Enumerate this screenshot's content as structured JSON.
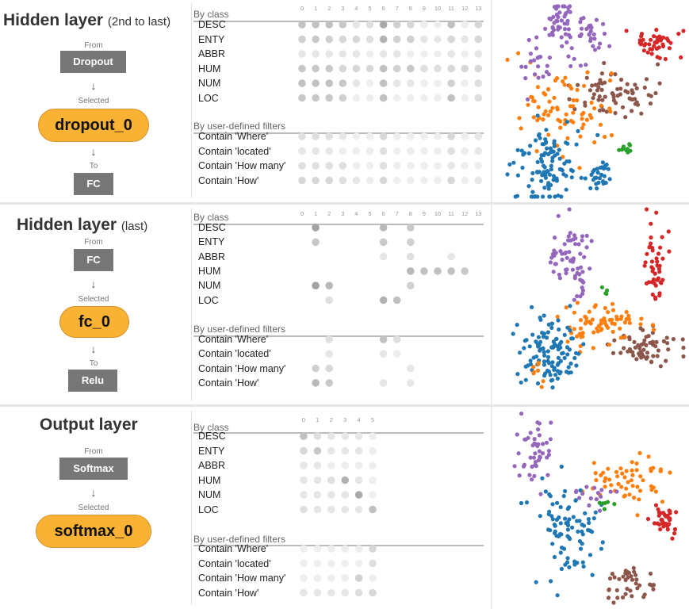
{
  "panels": [
    {
      "title": "Hidden layer",
      "subtitle": "(2nd to last)",
      "from_label": "From",
      "from": "Dropout",
      "selected_label": "Selected",
      "selected": "dropout_0",
      "to_label": "To",
      "to": "FC",
      "columns": [
        "0",
        "1",
        "2",
        "3",
        "4",
        "5",
        "6",
        "7",
        "8",
        "9",
        "10",
        "11",
        "12",
        "13"
      ],
      "class_header": "By class",
      "classes": [
        "DESC",
        "ENTY",
        "ABBR",
        "HUM",
        "NUM",
        "LOC"
      ],
      "filter_header": "By user-defined filters",
      "filters": [
        "Contain 'Where'",
        "Contain 'located'",
        "Contain 'How many'",
        "Contain 'How'"
      ],
      "class_matrix": [
        [
          0.35,
          0.35,
          0.35,
          0.3,
          0.1,
          0.15,
          0.5,
          0.25,
          0.2,
          0.05,
          0.05,
          0.35,
          0.05,
          0.2
        ],
        [
          0.25,
          0.3,
          0.25,
          0.2,
          0.2,
          0.15,
          0.45,
          0.25,
          0.25,
          0.1,
          0.1,
          0.2,
          0.1,
          0.2
        ],
        [
          0.1,
          0.1,
          0.1,
          0.1,
          0.1,
          0.05,
          0.1,
          0.1,
          0.05,
          0.05,
          0.05,
          0.1,
          0.05,
          0.1
        ],
        [
          0.3,
          0.3,
          0.3,
          0.2,
          0.2,
          0.2,
          0.35,
          0.25,
          0.3,
          0.15,
          0.15,
          0.2,
          0.2,
          0.2
        ],
        [
          0.35,
          0.35,
          0.35,
          0.3,
          0.1,
          0.05,
          0.35,
          0.1,
          0.1,
          0.05,
          0.05,
          0.25,
          0.05,
          0.15
        ],
        [
          0.3,
          0.3,
          0.3,
          0.25,
          0.05,
          0.05,
          0.35,
          0.05,
          0.05,
          0.05,
          0.05,
          0.35,
          0.05,
          0.15
        ]
      ],
      "filter_matrix": [
        [
          0.15,
          0.15,
          0.15,
          0.1,
          0.05,
          0.05,
          0.2,
          0.05,
          0.05,
          0.05,
          0.05,
          0.2,
          0.05,
          0.1
        ],
        [
          0.1,
          0.1,
          0.1,
          0.05,
          0.05,
          0.05,
          0.15,
          0.05,
          0.05,
          0.05,
          0.05,
          0.15,
          0.05,
          0.1
        ],
        [
          0.15,
          0.15,
          0.15,
          0.15,
          0.05,
          0.05,
          0.15,
          0.05,
          0.05,
          0.05,
          0.05,
          0.1,
          0.05,
          0.05
        ],
        [
          0.2,
          0.2,
          0.2,
          0.15,
          0.1,
          0.05,
          0.2,
          0.05,
          0.05,
          0.05,
          0.05,
          0.2,
          0.05,
          0.1
        ]
      ]
    },
    {
      "title": "Hidden layer",
      "subtitle": "(last)",
      "from_label": "From",
      "from": "FC",
      "selected_label": "Selected",
      "selected": "fc_0",
      "to_label": "To",
      "to": "Relu",
      "columns": [
        "0",
        "1",
        "2",
        "3",
        "4",
        "5",
        "6",
        "7",
        "8",
        "9",
        "10",
        "11",
        "12",
        "13"
      ],
      "class_header": "By class",
      "classes": [
        "DESC",
        "ENTY",
        "ABBR",
        "HUM",
        "NUM",
        "LOC"
      ],
      "filter_header": "By user-defined filters",
      "filters": [
        "Contain 'Where'",
        "Contain 'located'",
        "Contain 'How many'",
        "Contain 'How'"
      ],
      "class_matrix": [
        [
          0,
          0.55,
          0,
          0,
          0,
          0,
          0.4,
          0,
          0.3,
          0,
          0,
          0,
          0,
          0
        ],
        [
          0,
          0.3,
          0,
          0,
          0,
          0,
          0.3,
          0,
          0.25,
          0,
          0,
          0,
          0,
          0
        ],
        [
          0,
          0,
          0,
          0,
          0,
          0,
          0.1,
          0,
          0.15,
          0,
          0,
          0.1,
          0,
          0
        ],
        [
          0,
          0,
          0,
          0,
          0,
          0,
          0,
          0,
          0.4,
          0.35,
          0.35,
          0.35,
          0.3,
          0
        ],
        [
          0,
          0.55,
          0.4,
          0,
          0,
          0,
          0,
          0,
          0.25,
          0,
          0,
          0,
          0,
          0
        ],
        [
          0,
          0,
          0.15,
          0,
          0,
          0,
          0.45,
          0.35,
          0,
          0,
          0,
          0,
          0,
          0
        ]
      ],
      "filter_matrix": [
        [
          0,
          0,
          0.15,
          0,
          0,
          0,
          0.35,
          0.15,
          0,
          0,
          0,
          0,
          0,
          0
        ],
        [
          0,
          0,
          0.1,
          0,
          0,
          0,
          0.1,
          0.05,
          0,
          0,
          0,
          0,
          0,
          0
        ],
        [
          0,
          0.25,
          0.2,
          0,
          0,
          0,
          0,
          0,
          0.1,
          0,
          0,
          0,
          0,
          0
        ],
        [
          0,
          0.4,
          0.3,
          0,
          0,
          0,
          0.1,
          0,
          0.1,
          0,
          0,
          0,
          0,
          0
        ]
      ]
    },
    {
      "title": "Output layer",
      "subtitle": "",
      "from_label": "From",
      "from": "Softmax",
      "selected_label": "Selected",
      "selected": "softmax_0",
      "to_label": "",
      "to": "",
      "columns": [
        "0",
        "1",
        "2",
        "3",
        "4",
        "5"
      ],
      "class_header": "By class",
      "classes": [
        "DESC",
        "ENTY",
        "ABBR",
        "HUM",
        "NUM",
        "LOC"
      ],
      "filter_header": "By user-defined filters",
      "filters": [
        "Contain 'Where'",
        "Contain 'located'",
        "Contain 'How many'",
        "Contain 'How'"
      ],
      "class_matrix": [
        [
          0.35,
          0.15,
          0.1,
          0.1,
          0.1,
          0.05
        ],
        [
          0.2,
          0.3,
          0.1,
          0.1,
          0.1,
          0.05
        ],
        [
          0.1,
          0.1,
          0.05,
          0.05,
          0.05,
          0.05
        ],
        [
          0.1,
          0.1,
          0.15,
          0.45,
          0.1,
          0.05
        ],
        [
          0.1,
          0.1,
          0.1,
          0.1,
          0.5,
          0.05
        ],
        [
          0.15,
          0.1,
          0.1,
          0.1,
          0.1,
          0.35
        ]
      ],
      "filter_matrix": [
        [
          0.05,
          0.05,
          0.05,
          0.05,
          0.05,
          0.2
        ],
        [
          0.05,
          0.05,
          0.05,
          0.05,
          0.05,
          0.15
        ],
        [
          0.05,
          0.05,
          0.05,
          0.05,
          0.25,
          0.05
        ],
        [
          0.1,
          0.1,
          0.1,
          0.1,
          0.15,
          0.2
        ]
      ]
    }
  ],
  "class_colors": {
    "DESC": "#1f77b4",
    "ENTY": "#ff7f0e",
    "ABBR": "#2ca02c",
    "HUM": "#d62728",
    "NUM": "#9467bd",
    "LOC": "#8c564b"
  }
}
